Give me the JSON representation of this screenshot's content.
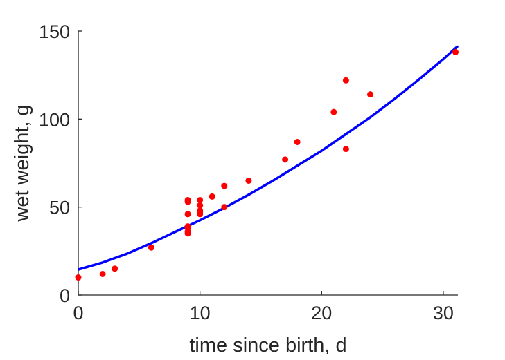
{
  "chart_data": {
    "type": "scatter",
    "xlabel": "time since birth, d",
    "ylabel": "wet weight, g",
    "xlim": [
      0,
      31.2
    ],
    "ylim": [
      0,
      150
    ],
    "xticks": [
      0,
      10,
      20,
      30
    ],
    "yticks": [
      0,
      50,
      100,
      150
    ],
    "grid": false,
    "legend": "none",
    "series": [
      {
        "kind": "points",
        "color": "#ff0000",
        "x": [
          0,
          2,
          3,
          6,
          9,
          9,
          9,
          9,
          9,
          9,
          9,
          10,
          10,
          10,
          10,
          10,
          11,
          12,
          12,
          14,
          17,
          18,
          21,
          22,
          22,
          24,
          31
        ],
        "y": [
          10,
          12,
          15,
          27,
          54,
          53,
          46,
          39,
          36,
          35,
          38,
          54,
          51,
          48,
          46,
          47,
          56,
          62,
          50,
          65,
          77,
          87,
          104,
          122,
          83,
          114,
          138
        ]
      },
      {
        "kind": "line",
        "color": "#0000ff",
        "x": [
          0,
          2,
          4,
          6,
          8,
          10,
          12,
          14,
          16,
          18,
          20,
          22,
          24,
          26,
          28,
          30,
          31.2
        ],
        "y": [
          14.5,
          18.5,
          23.5,
          29.5,
          36,
          42.5,
          49.5,
          57,
          65,
          73.5,
          82,
          91.5,
          101,
          111.5,
          122.5,
          134,
          141.5
        ]
      }
    ]
  }
}
